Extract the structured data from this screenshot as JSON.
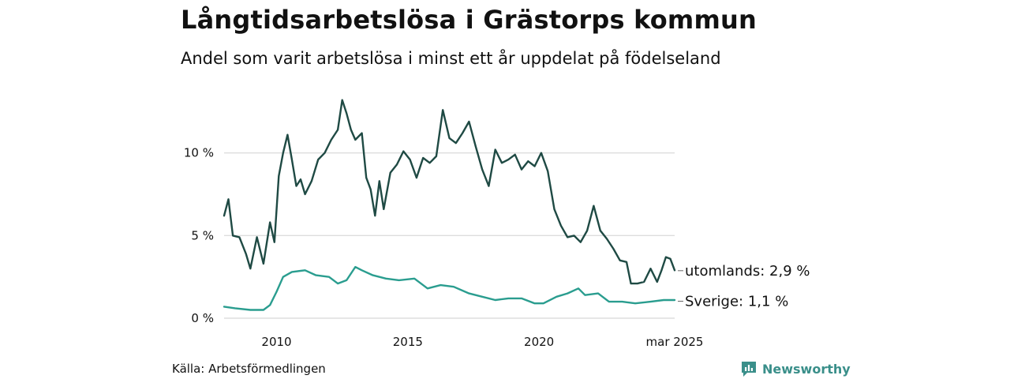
{
  "title": "Långtidsarbetslösa i Grästorps kommun",
  "subtitle": "Andel som varit arbetslösa i minst ett år uppdelat på födelseland",
  "source": "Källa: Arbetsförmedlingen",
  "brand": "Newsworthy",
  "colors": {
    "utomlands": "#1f4a44",
    "sverige": "#2a9d8f",
    "grid": "#dddddd",
    "brand": "#3a8f8a"
  },
  "chart_data": {
    "type": "line",
    "title": "Långtidsarbetslösa i Grästorps kommun",
    "subtitle": "Andel som varit arbetslösa i minst ett år uppdelat på födelseland",
    "x_range": [
      "2008-01",
      "2025-03"
    ],
    "ylim": [
      0,
      14
    ],
    "y_ticks": [
      0,
      5,
      10
    ],
    "y_tick_labels": [
      "0 %",
      "5 %",
      "10 %"
    ],
    "x_ticks": [
      "2010-01",
      "2015-01",
      "2020-01",
      "2025-03"
    ],
    "x_tick_labels": [
      "2010",
      "2015",
      "2020",
      "mar 2025"
    ],
    "grid": "horizontal",
    "series": [
      {
        "name": "utomlands",
        "end_label": "utomlands: 2,9 %",
        "points": [
          [
            "2008-01",
            6.2
          ],
          [
            "2008-03",
            7.2
          ],
          [
            "2008-05",
            5.0
          ],
          [
            "2008-08",
            4.9
          ],
          [
            "2008-11",
            3.9
          ],
          [
            "2009-01",
            3.0
          ],
          [
            "2009-04",
            4.9
          ],
          [
            "2009-07",
            3.3
          ],
          [
            "2009-10",
            5.8
          ],
          [
            "2009-12",
            4.6
          ],
          [
            "2010-02",
            8.6
          ],
          [
            "2010-04",
            10.0
          ],
          [
            "2010-06",
            11.1
          ],
          [
            "2010-08",
            9.6
          ],
          [
            "2010-10",
            8.0
          ],
          [
            "2010-12",
            8.4
          ],
          [
            "2011-02",
            7.5
          ],
          [
            "2011-05",
            8.3
          ],
          [
            "2011-08",
            9.6
          ],
          [
            "2011-11",
            10.0
          ],
          [
            "2012-02",
            10.8
          ],
          [
            "2012-05",
            11.4
          ],
          [
            "2012-07",
            13.2
          ],
          [
            "2012-09",
            12.4
          ],
          [
            "2012-11",
            11.4
          ],
          [
            "2013-01",
            10.8
          ],
          [
            "2013-04",
            11.2
          ],
          [
            "2013-06",
            8.5
          ],
          [
            "2013-08",
            7.8
          ],
          [
            "2013-10",
            6.2
          ],
          [
            "2013-12",
            8.3
          ],
          [
            "2014-02",
            6.6
          ],
          [
            "2014-05",
            8.8
          ],
          [
            "2014-08",
            9.3
          ],
          [
            "2014-11",
            10.1
          ],
          [
            "2015-02",
            9.6
          ],
          [
            "2015-05",
            8.5
          ],
          [
            "2015-08",
            9.7
          ],
          [
            "2015-11",
            9.4
          ],
          [
            "2016-02",
            9.8
          ],
          [
            "2016-05",
            12.6
          ],
          [
            "2016-08",
            10.9
          ],
          [
            "2016-11",
            10.6
          ],
          [
            "2017-02",
            11.2
          ],
          [
            "2017-05",
            11.9
          ],
          [
            "2017-08",
            10.4
          ],
          [
            "2017-11",
            9.0
          ],
          [
            "2018-02",
            8.0
          ],
          [
            "2018-05",
            10.2
          ],
          [
            "2018-08",
            9.4
          ],
          [
            "2018-11",
            9.6
          ],
          [
            "2019-02",
            9.9
          ],
          [
            "2019-05",
            9.0
          ],
          [
            "2019-08",
            9.5
          ],
          [
            "2019-11",
            9.2
          ],
          [
            "2020-02",
            10.0
          ],
          [
            "2020-05",
            8.9
          ],
          [
            "2020-08",
            6.6
          ],
          [
            "2020-11",
            5.6
          ],
          [
            "2021-02",
            4.9
          ],
          [
            "2021-05",
            5.0
          ],
          [
            "2021-08",
            4.6
          ],
          [
            "2021-11",
            5.3
          ],
          [
            "2022-02",
            6.8
          ],
          [
            "2022-05",
            5.3
          ],
          [
            "2022-08",
            4.8
          ],
          [
            "2022-11",
            4.2
          ],
          [
            "2023-02",
            3.5
          ],
          [
            "2023-05",
            3.4
          ],
          [
            "2023-07",
            2.1
          ],
          [
            "2023-10",
            2.1
          ],
          [
            "2024-01",
            2.2
          ],
          [
            "2024-04",
            3.0
          ],
          [
            "2024-07",
            2.2
          ],
          [
            "2024-09",
            2.9
          ],
          [
            "2024-11",
            3.7
          ],
          [
            "2025-01",
            3.6
          ],
          [
            "2025-03",
            2.9
          ]
        ]
      },
      {
        "name": "Sverige",
        "end_label": "Sverige: 1,1 %",
        "points": [
          [
            "2008-01",
            0.7
          ],
          [
            "2008-06",
            0.6
          ],
          [
            "2009-01",
            0.5
          ],
          [
            "2009-07",
            0.5
          ],
          [
            "2009-10",
            0.8
          ],
          [
            "2010-01",
            1.6
          ],
          [
            "2010-04",
            2.5
          ],
          [
            "2010-08",
            2.8
          ],
          [
            "2011-02",
            2.9
          ],
          [
            "2011-07",
            2.6
          ],
          [
            "2012-01",
            2.5
          ],
          [
            "2012-05",
            2.1
          ],
          [
            "2012-09",
            2.3
          ],
          [
            "2013-01",
            3.1
          ],
          [
            "2013-04",
            2.9
          ],
          [
            "2013-09",
            2.6
          ],
          [
            "2014-03",
            2.4
          ],
          [
            "2014-09",
            2.3
          ],
          [
            "2015-04",
            2.4
          ],
          [
            "2015-10",
            1.8
          ],
          [
            "2016-04",
            2.0
          ],
          [
            "2016-10",
            1.9
          ],
          [
            "2017-05",
            1.5
          ],
          [
            "2017-11",
            1.3
          ],
          [
            "2018-05",
            1.1
          ],
          [
            "2018-11",
            1.2
          ],
          [
            "2019-05",
            1.2
          ],
          [
            "2019-11",
            0.9
          ],
          [
            "2020-03",
            0.9
          ],
          [
            "2020-09",
            1.3
          ],
          [
            "2021-02",
            1.5
          ],
          [
            "2021-07",
            1.8
          ],
          [
            "2021-10",
            1.4
          ],
          [
            "2022-04",
            1.5
          ],
          [
            "2022-09",
            1.0
          ],
          [
            "2023-03",
            1.0
          ],
          [
            "2023-09",
            0.9
          ],
          [
            "2024-04",
            1.0
          ],
          [
            "2024-10",
            1.1
          ],
          [
            "2025-03",
            1.1
          ]
        ]
      }
    ]
  }
}
